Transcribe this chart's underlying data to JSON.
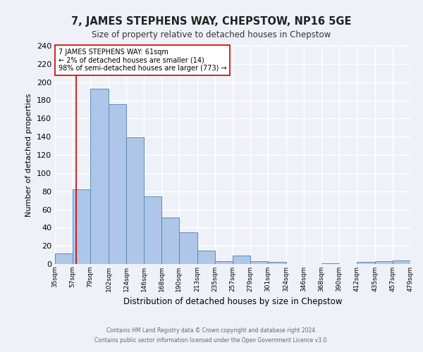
{
  "title": "7, JAMES STEPHENS WAY, CHEPSTOW, NP16 5GE",
  "subtitle": "Size of property relative to detached houses in Chepstow",
  "xlabel": "Distribution of detached houses by size in Chepstow",
  "ylabel": "Number of detached properties",
  "bar_color": "#aec6e8",
  "bar_edge_color": "#5b8db8",
  "bin_edges": [
    35,
    57,
    79,
    102,
    124,
    146,
    168,
    190,
    213,
    235,
    257,
    279,
    301,
    324,
    346,
    368,
    390,
    412,
    435,
    457,
    479
  ],
  "bin_heights": [
    12,
    82,
    193,
    176,
    139,
    74,
    51,
    35,
    15,
    3,
    9,
    3,
    2,
    0,
    0,
    1,
    0,
    2,
    3,
    4
  ],
  "tick_labels": [
    "35sqm",
    "57sqm",
    "79sqm",
    "102sqm",
    "124sqm",
    "146sqm",
    "168sqm",
    "190sqm",
    "213sqm",
    "235sqm",
    "257sqm",
    "279sqm",
    "301sqm",
    "324sqm",
    "346sqm",
    "368sqm",
    "390sqm",
    "412sqm",
    "435sqm",
    "457sqm",
    "479sqm"
  ],
  "ylim": [
    0,
    240
  ],
  "yticks": [
    0,
    20,
    40,
    60,
    80,
    100,
    120,
    140,
    160,
    180,
    200,
    220,
    240
  ],
  "vline_x": 61,
  "vline_color": "#cc0000",
  "annotation_title": "7 JAMES STEPHENS WAY: 61sqm",
  "annotation_line1": "← 2% of detached houses are smaller (14)",
  "annotation_line2": "98% of semi-detached houses are larger (773) →",
  "annotation_box_color": "#ffffff",
  "annotation_box_edge": "#cc0000",
  "background_color": "#eef2f8",
  "grid_color": "#ffffff",
  "footer1": "Contains HM Land Registry data © Crown copyright and database right 2024.",
  "footer2": "Contains public sector information licensed under the Open Government Licence v3.0."
}
